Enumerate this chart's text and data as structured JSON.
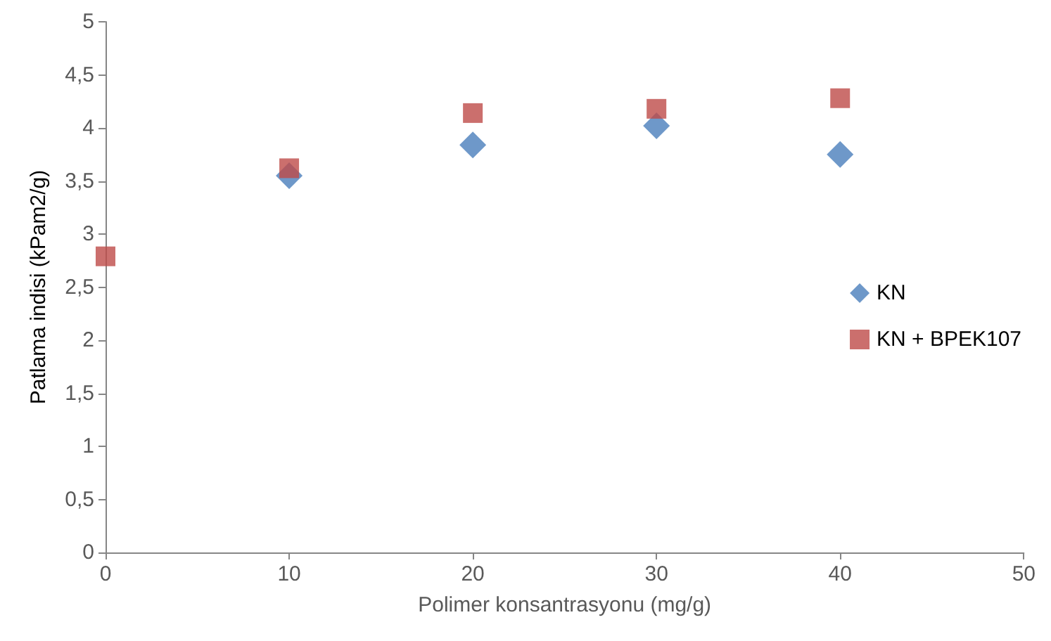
{
  "chart_data": {
    "type": "scatter",
    "xlabel": "Polimer konsantrasyonu (mg/g)",
    "ylabel": "Patlama indisi (kPam2/g)",
    "x": [
      0,
      10,
      20,
      30,
      40
    ],
    "series": [
      {
        "name": "KN",
        "color": "#4a7ebb",
        "marker": "diamond",
        "values": [
          null,
          3.55,
          3.84,
          4.02,
          3.75
        ]
      },
      {
        "name": "KN + BPEK107",
        "color": "#be4b48",
        "marker": "square",
        "values": [
          2.79,
          3.62,
          4.14,
          4.18,
          4.28
        ]
      }
    ],
    "xlim": [
      0,
      50
    ],
    "xticks": [
      0,
      10,
      20,
      30,
      40,
      50
    ],
    "ylim": [
      0,
      5
    ],
    "yticks": [
      0,
      {
        "value": 0.5,
        "label": "0,5"
      },
      1,
      {
        "value": 1.5,
        "label": "1,5"
      },
      2,
      {
        "value": 2.5,
        "label": "2,5"
      },
      3,
      {
        "value": 3.5,
        "label": "3,5"
      },
      4,
      {
        "value": 4.5,
        "label": "4,5"
      },
      5
    ],
    "grid": false,
    "legend": "right"
  }
}
